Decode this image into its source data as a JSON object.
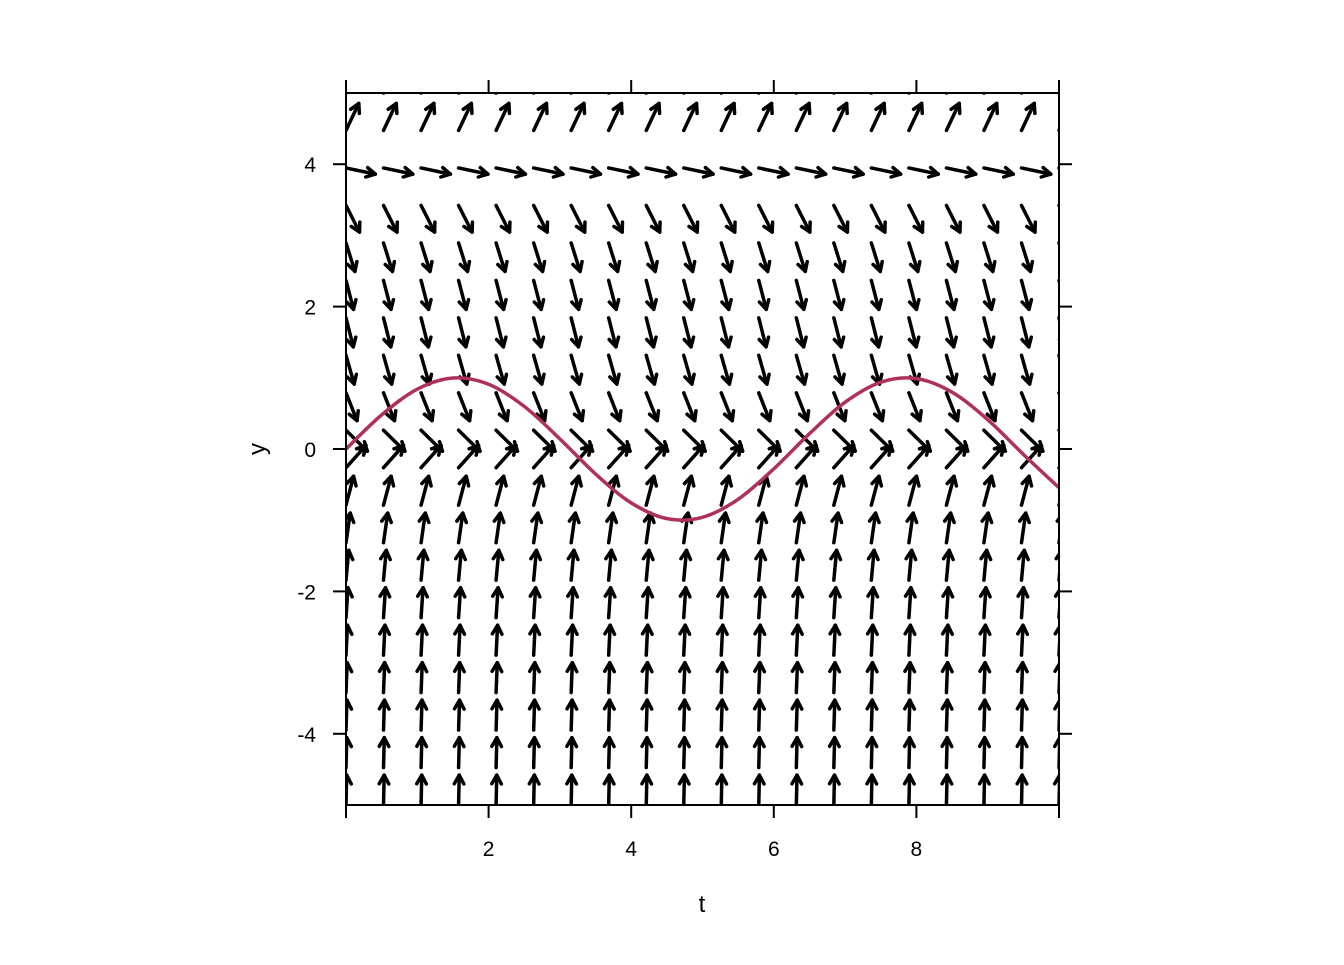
{
  "chart_data": {
    "type": "vector-field",
    "title": "",
    "xlabel": "t",
    "ylabel": "y",
    "xlim": [
      0,
      10
    ],
    "ylim": [
      -5,
      5
    ],
    "xticks": [
      2,
      4,
      6,
      8
    ],
    "yticks": [
      -4,
      -2,
      0,
      2,
      4
    ],
    "grid": false,
    "field": {
      "t_grid": [
        0,
        0.526,
        1.053,
        1.579,
        2.105,
        2.632,
        3.158,
        3.684,
        4.211,
        4.737,
        5.263,
        5.789,
        6.316,
        6.842,
        7.368,
        7.895,
        8.421,
        8.947,
        9.474,
        10
      ],
      "y_grid": [
        -5,
        -4.474,
        -3.947,
        -3.421,
        -2.895,
        -2.368,
        -1.842,
        -1.316,
        -0.789,
        -0.263,
        0.263,
        0.789,
        1.316,
        1.842,
        2.368,
        2.895,
        3.421,
        3.947,
        4.474,
        5
      ],
      "slope_by_y": [
        45,
        37.9,
        31.4,
        25.4,
        20.0,
        15.1,
        10.8,
        7.0,
        3.8,
        1.12,
        -0.98,
        -2.53,
        -3.53,
        -3.98,
        -3.86,
        -3.2,
        -1.98,
        -0.21,
        2.12,
        5.0
      ],
      "arrow_color": "#000000"
    },
    "series": [
      {
        "color": "#B0305C",
        "t": [
          0,
          0.5,
          1,
          1.5,
          2,
          2.5,
          3,
          3.5,
          4,
          4.5,
          5,
          5.5,
          6,
          6.5,
          7,
          7.5,
          8,
          8.5,
          9,
          9.5,
          10
        ],
        "y": [
          0,
          0.479,
          0.841,
          0.997,
          0.909,
          0.598,
          0.141,
          -0.351,
          -0.757,
          -0.978,
          -0.959,
          -0.706,
          -0.279,
          0.215,
          0.657,
          0.938,
          0.989,
          0.798,
          0.412,
          -0.075,
          -0.544
        ]
      }
    ]
  }
}
